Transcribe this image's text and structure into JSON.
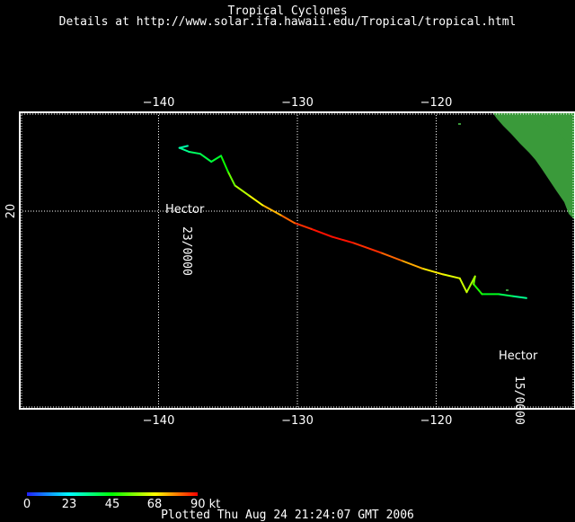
{
  "header": {
    "title": "Tropical Cyclones",
    "subtitle": "Details at http://www.solar.ifa.hawaii.edu/Tropical/tropical.html"
  },
  "map": {
    "lon_range": [
      -150,
      -110
    ],
    "lat_range": [
      10,
      25
    ],
    "lon_ticks": [
      {
        "value": -140,
        "label": "−140"
      },
      {
        "value": -130,
        "label": "−130"
      },
      {
        "value": -120,
        "label": "−120"
      }
    ],
    "lat_ticks": [
      {
        "value": 20,
        "label": "20"
      }
    ],
    "grid": true,
    "land_color": "#3a9a3a",
    "frame_color": "#ffffff"
  },
  "storm": {
    "name_start": "Hector",
    "name_end": "Hector",
    "date_start": "15/0000",
    "date_end": "23/0000",
    "track": [
      {
        "lon": -113.5,
        "lat": 15.6,
        "kt": 30
      },
      {
        "lon": -114.5,
        "lat": 15.7,
        "kt": 35
      },
      {
        "lon": -115.5,
        "lat": 15.8,
        "kt": 40
      },
      {
        "lon": -116.7,
        "lat": 15.8,
        "kt": 45
      },
      {
        "lon": -117.3,
        "lat": 16.3,
        "kt": 50
      },
      {
        "lon": -117.2,
        "lat": 16.7,
        "kt": 58
      },
      {
        "lon": -117.8,
        "lat": 15.9,
        "kt": 62
      },
      {
        "lon": -118.3,
        "lat": 16.6,
        "kt": 64
      },
      {
        "lon": -119.5,
        "lat": 16.8,
        "kt": 66
      },
      {
        "lon": -121.0,
        "lat": 17.1,
        "kt": 72
      },
      {
        "lon": -122.5,
        "lat": 17.5,
        "kt": 78
      },
      {
        "lon": -124.0,
        "lat": 17.9,
        "kt": 84
      },
      {
        "lon": -126.0,
        "lat": 18.4,
        "kt": 88
      },
      {
        "lon": -127.5,
        "lat": 18.7,
        "kt": 89
      },
      {
        "lon": -129.0,
        "lat": 19.1,
        "kt": 88
      },
      {
        "lon": -130.2,
        "lat": 19.4,
        "kt": 84
      },
      {
        "lon": -131.2,
        "lat": 19.8,
        "kt": 78
      },
      {
        "lon": -132.5,
        "lat": 20.3,
        "kt": 70
      },
      {
        "lon": -133.5,
        "lat": 20.8,
        "kt": 64
      },
      {
        "lon": -134.5,
        "lat": 21.3,
        "kt": 58
      },
      {
        "lon": -135.0,
        "lat": 22.0,
        "kt": 50
      },
      {
        "lon": -135.5,
        "lat": 22.8,
        "kt": 42
      },
      {
        "lon": -136.2,
        "lat": 22.5,
        "kt": 40
      },
      {
        "lon": -137.0,
        "lat": 22.9,
        "kt": 38
      },
      {
        "lon": -137.8,
        "lat": 23.0,
        "kt": 35
      },
      {
        "lon": -138.5,
        "lat": 23.2,
        "kt": 30
      },
      {
        "lon": -137.9,
        "lat": 23.3,
        "kt": 30
      }
    ]
  },
  "legend": {
    "ticks": [
      "0",
      "23",
      "45",
      "68",
      "90 kt"
    ],
    "max_kt": 90,
    "stops": [
      "#2020ff",
      "#00ffff",
      "#00ff00",
      "#ffff00",
      "#ff0000"
    ]
  },
  "footer": {
    "plotted": "Plotted Thu Aug 24 21:24:07 GMT 2006"
  }
}
